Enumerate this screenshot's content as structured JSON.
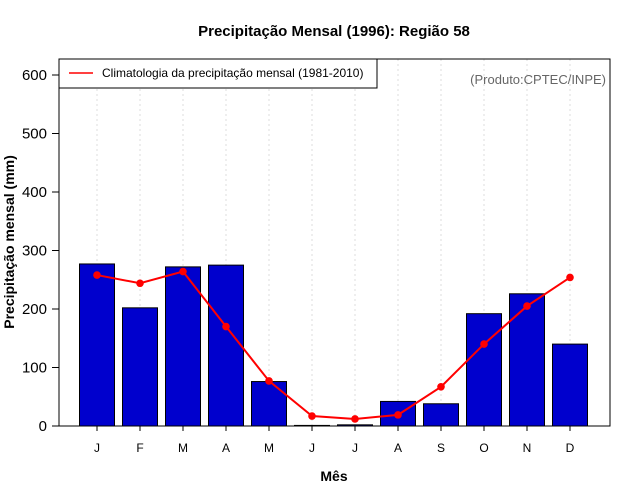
{
  "chart_data": {
    "type": "bar",
    "title": "Precipitação Mensal (1996): Região 58",
    "xlabel": "Mês",
    "ylabel": "Precipitação mensal (mm)",
    "ylim": [
      0,
      600
    ],
    "yticks": [
      0,
      100,
      200,
      300,
      400,
      500,
      600
    ],
    "categories": [
      "J",
      "F",
      "M",
      "A",
      "M",
      "J",
      "J",
      "A",
      "S",
      "O",
      "N",
      "D"
    ],
    "series": [
      {
        "name": "Precipitação mensal (1996)",
        "kind": "bar",
        "color": "#0000cd",
        "values": [
          277,
          202,
          272,
          275,
          76,
          1,
          2,
          42,
          38,
          192,
          226,
          140
        ]
      },
      {
        "name": "Climatologia da precipitação mensal (1981-2010)",
        "kind": "line",
        "color": "#ff0000",
        "values": [
          258,
          244,
          264,
          170,
          77,
          17,
          12,
          19,
          67,
          140,
          205,
          254
        ]
      }
    ],
    "legend": {
      "position": "top-left",
      "label": "Climatologia da precipitação mensal (1981-2010)"
    },
    "credit": "(Produto:CPTEC/INPE)",
    "grid": {
      "vertical": true,
      "color": "#dddddd"
    }
  }
}
